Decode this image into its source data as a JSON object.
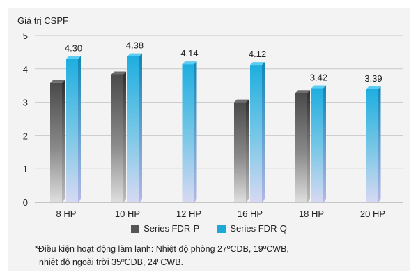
{
  "chart_data": {
    "type": "bar",
    "ylabel": "Giá trị CSPF",
    "xlabel": "",
    "ylim": [
      0,
      5
    ],
    "yticks": [
      0,
      1,
      2,
      3,
      4,
      5
    ],
    "categories": [
      "8 HP",
      "10 HP",
      "12 HP",
      "16 HP",
      "18 HP",
      "20 HP"
    ],
    "series": [
      {
        "name": "Series FDR-P",
        "color": "#555555",
        "values": [
          3.58,
          3.84,
          null,
          3.0,
          3.28,
          null
        ],
        "show_labels": false
      },
      {
        "name": "Series FDR-Q",
        "color": "#1ea8d8",
        "values": [
          4.3,
          4.38,
          4.14,
          4.12,
          3.42,
          3.39
        ],
        "labels": [
          "4.30",
          "4.38",
          "4.14",
          "4.12",
          "3.42",
          "3.39"
        ],
        "show_labels": true
      }
    ],
    "grid": true,
    "legend_position": "bottom"
  },
  "footnote": {
    "line1": "*Điều kiện hoạt động làm lạnh: Nhiệt độ phòng 27ºCDB, 19ºCWB,",
    "line2": "nhiệt độ ngoài trời 35ºCDB, 24ºCWB."
  }
}
